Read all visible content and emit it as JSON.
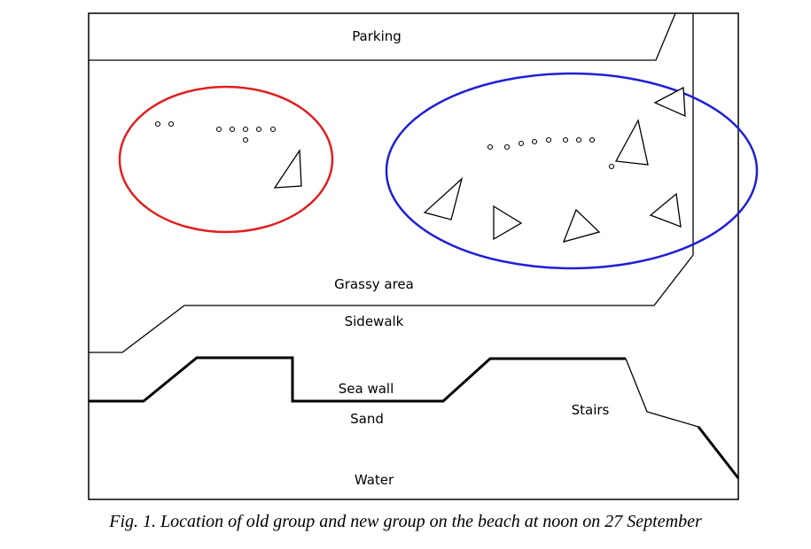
{
  "labels": {
    "parking": "Parking",
    "grassy_area": "Grassy area",
    "sidewalk": "Sidewalk",
    "sea_wall": "Sea wall",
    "sand": "Sand",
    "stairs": "Stairs",
    "water": "Water"
  },
  "caption": "Fig. 1. Location of old group and new group on the beach at noon on 27 September",
  "groups": {
    "old_group": {
      "outline_color": "#e02020"
    },
    "new_group": {
      "outline_color": "#1f1fd6"
    }
  }
}
